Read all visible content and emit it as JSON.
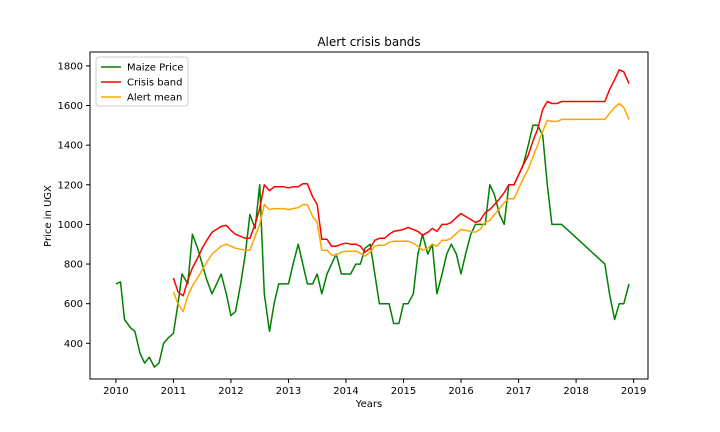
{
  "chart_data": {
    "type": "line",
    "title": "Alert crisis bands",
    "xlabel": "Years",
    "ylabel": "Price in UGX",
    "xlim": [
      2009.55,
      2019.25
    ],
    "ylim": [
      220,
      1870
    ],
    "x_ticks": [
      2010,
      2011,
      2012,
      2013,
      2014,
      2015,
      2016,
      2017,
      2018,
      2019
    ],
    "x_tick_labels": [
      "2010",
      "2011",
      "2012",
      "2013",
      "2014",
      "2015",
      "2016",
      "2017",
      "2018",
      "2019"
    ],
    "y_ticks": [
      400,
      600,
      800,
      1000,
      1200,
      1400,
      1600,
      1800
    ],
    "y_tick_labels": [
      "400",
      "600",
      "800",
      "1000",
      "1200",
      "1400",
      "1600",
      "1800"
    ],
    "grid": false,
    "legend_position": "top-left",
    "series": [
      {
        "name": "Maize Price",
        "color": "#008000",
        "points": [
          [
            2010.0,
            700
          ],
          [
            2010.08,
            710
          ],
          [
            2010.15,
            520
          ],
          [
            2010.25,
            480
          ],
          [
            2010.33,
            460
          ],
          [
            2010.42,
            350
          ],
          [
            2010.5,
            300
          ],
          [
            2010.58,
            330
          ],
          [
            2010.67,
            280
          ],
          [
            2010.75,
            300
          ],
          [
            2010.83,
            400
          ],
          [
            2010.92,
            430
          ],
          [
            2011.0,
            450
          ],
          [
            2011.08,
            600
          ],
          [
            2011.15,
            750
          ],
          [
            2011.25,
            700
          ],
          [
            2011.33,
            950
          ],
          [
            2011.42,
            880
          ],
          [
            2011.5,
            800
          ],
          [
            2011.58,
            720
          ],
          [
            2011.67,
            650
          ],
          [
            2011.75,
            700
          ],
          [
            2011.83,
            750
          ],
          [
            2011.92,
            650
          ],
          [
            2012.0,
            540
          ],
          [
            2012.08,
            560
          ],
          [
            2012.17,
            700
          ],
          [
            2012.25,
            850
          ],
          [
            2012.33,
            1050
          ],
          [
            2012.42,
            980
          ],
          [
            2012.5,
            1200
          ],
          [
            2012.58,
            650
          ],
          [
            2012.67,
            460
          ],
          [
            2012.75,
            600
          ],
          [
            2012.83,
            700
          ],
          [
            2012.92,
            700
          ],
          [
            2013.0,
            700
          ],
          [
            2013.08,
            800
          ],
          [
            2013.17,
            900
          ],
          [
            2013.25,
            800
          ],
          [
            2013.33,
            700
          ],
          [
            2013.42,
            700
          ],
          [
            2013.5,
            750
          ],
          [
            2013.58,
            650
          ],
          [
            2013.67,
            750
          ],
          [
            2013.75,
            800
          ],
          [
            2013.83,
            850
          ],
          [
            2013.92,
            750
          ],
          [
            2014.0,
            750
          ],
          [
            2014.08,
            750
          ],
          [
            2014.17,
            800
          ],
          [
            2014.25,
            800
          ],
          [
            2014.33,
            880
          ],
          [
            2014.42,
            900
          ],
          [
            2014.5,
            750
          ],
          [
            2014.58,
            600
          ],
          [
            2014.67,
            600
          ],
          [
            2014.75,
            600
          ],
          [
            2014.83,
            500
          ],
          [
            2014.92,
            500
          ],
          [
            2015.0,
            600
          ],
          [
            2015.08,
            600
          ],
          [
            2015.17,
            650
          ],
          [
            2015.25,
            850
          ],
          [
            2015.33,
            950
          ],
          [
            2015.42,
            850
          ],
          [
            2015.5,
            900
          ],
          [
            2015.58,
            650
          ],
          [
            2015.67,
            750
          ],
          [
            2015.75,
            850
          ],
          [
            2015.83,
            900
          ],
          [
            2015.92,
            850
          ],
          [
            2016.0,
            750
          ],
          [
            2016.08,
            850
          ],
          [
            2016.17,
            950
          ],
          [
            2016.25,
            1000
          ],
          [
            2016.33,
            1000
          ],
          [
            2016.42,
            1000
          ],
          [
            2016.5,
            1200
          ],
          [
            2016.58,
            1150
          ],
          [
            2016.67,
            1050
          ],
          [
            2016.75,
            1000
          ],
          [
            2016.83,
            1200
          ],
          [
            2016.92,
            1200
          ],
          [
            2017.0,
            1250
          ],
          [
            2017.08,
            1300
          ],
          [
            2017.17,
            1400
          ],
          [
            2017.25,
            1500
          ],
          [
            2017.33,
            1500
          ],
          [
            2017.42,
            1450
          ],
          [
            2017.5,
            1200
          ],
          [
            2017.58,
            1000
          ],
          [
            2017.67,
            1000
          ],
          [
            2017.75,
            1000
          ],
          [
            2018.5,
            800
          ],
          [
            2018.58,
            650
          ],
          [
            2018.67,
            520
          ],
          [
            2018.75,
            600
          ],
          [
            2018.83,
            600
          ],
          [
            2018.92,
            700
          ]
        ]
      },
      {
        "name": "Crisis band",
        "color": "#ff0000",
        "points": [
          [
            2011.0,
            730
          ],
          [
            2011.08,
            660
          ],
          [
            2011.17,
            640
          ],
          [
            2011.25,
            720
          ],
          [
            2011.33,
            780
          ],
          [
            2011.42,
            830
          ],
          [
            2011.5,
            880
          ],
          [
            2011.58,
            920
          ],
          [
            2011.67,
            960
          ],
          [
            2011.75,
            975
          ],
          [
            2011.83,
            990
          ],
          [
            2011.92,
            995
          ],
          [
            2012.0,
            970
          ],
          [
            2012.08,
            950
          ],
          [
            2012.17,
            940
          ],
          [
            2012.25,
            930
          ],
          [
            2012.33,
            930
          ],
          [
            2012.42,
            1000
          ],
          [
            2012.5,
            1080
          ],
          [
            2012.58,
            1200
          ],
          [
            2012.67,
            1170
          ],
          [
            2012.75,
            1190
          ],
          [
            2012.83,
            1190
          ],
          [
            2012.92,
            1190
          ],
          [
            2013.0,
            1185
          ],
          [
            2013.08,
            1190
          ],
          [
            2013.17,
            1190
          ],
          [
            2013.25,
            1205
          ],
          [
            2013.33,
            1205
          ],
          [
            2013.42,
            1140
          ],
          [
            2013.5,
            1100
          ],
          [
            2013.58,
            925
          ],
          [
            2013.67,
            925
          ],
          [
            2013.75,
            890
          ],
          [
            2013.83,
            890
          ],
          [
            2013.92,
            900
          ],
          [
            2014.0,
            905
          ],
          [
            2014.08,
            900
          ],
          [
            2014.17,
            900
          ],
          [
            2014.25,
            890
          ],
          [
            2014.33,
            860
          ],
          [
            2014.42,
            880
          ],
          [
            2014.5,
            920
          ],
          [
            2014.58,
            930
          ],
          [
            2014.67,
            930
          ],
          [
            2014.75,
            950
          ],
          [
            2014.83,
            965
          ],
          [
            2014.92,
            970
          ],
          [
            2015.0,
            975
          ],
          [
            2015.08,
            985
          ],
          [
            2015.17,
            975
          ],
          [
            2015.25,
            965
          ],
          [
            2015.33,
            945
          ],
          [
            2015.42,
            960
          ],
          [
            2015.5,
            980
          ],
          [
            2015.58,
            965
          ],
          [
            2015.67,
            1000
          ],
          [
            2015.75,
            1000
          ],
          [
            2015.83,
            1010
          ],
          [
            2015.92,
            1035
          ],
          [
            2016.0,
            1055
          ],
          [
            2016.08,
            1040
          ],
          [
            2016.17,
            1025
          ],
          [
            2016.25,
            1010
          ],
          [
            2016.33,
            1020
          ],
          [
            2016.42,
            1060
          ],
          [
            2016.5,
            1075
          ],
          [
            2016.58,
            1100
          ],
          [
            2016.67,
            1130
          ],
          [
            2016.75,
            1160
          ],
          [
            2016.83,
            1200
          ],
          [
            2016.92,
            1200
          ],
          [
            2017.0,
            1250
          ],
          [
            2017.08,
            1300
          ],
          [
            2017.17,
            1350
          ],
          [
            2017.25,
            1420
          ],
          [
            2017.33,
            1480
          ],
          [
            2017.42,
            1580
          ],
          [
            2017.5,
            1620
          ],
          [
            2017.58,
            1610
          ],
          [
            2017.67,
            1610
          ],
          [
            2017.75,
            1620
          ],
          [
            2017.83,
            1620
          ],
          [
            2018.42,
            1620
          ],
          [
            2018.5,
            1620
          ],
          [
            2018.58,
            1680
          ],
          [
            2018.67,
            1730
          ],
          [
            2018.75,
            1780
          ],
          [
            2018.83,
            1770
          ],
          [
            2018.92,
            1710
          ]
        ]
      },
      {
        "name": "Alert mean",
        "color": "#ffa500",
        "points": [
          [
            2011.0,
            660
          ],
          [
            2011.08,
            600
          ],
          [
            2011.17,
            560
          ],
          [
            2011.25,
            640
          ],
          [
            2011.33,
            690
          ],
          [
            2011.42,
            730
          ],
          [
            2011.5,
            770
          ],
          [
            2011.58,
            810
          ],
          [
            2011.67,
            850
          ],
          [
            2011.75,
            870
          ],
          [
            2011.83,
            890
          ],
          [
            2011.92,
            900
          ],
          [
            2012.0,
            890
          ],
          [
            2012.08,
            880
          ],
          [
            2012.17,
            875
          ],
          [
            2012.25,
            870
          ],
          [
            2012.33,
            870
          ],
          [
            2012.42,
            940
          ],
          [
            2012.5,
            1000
          ],
          [
            2012.58,
            1100
          ],
          [
            2012.67,
            1075
          ],
          [
            2012.75,
            1080
          ],
          [
            2012.83,
            1080
          ],
          [
            2012.92,
            1080
          ],
          [
            2013.0,
            1075
          ],
          [
            2013.08,
            1080
          ],
          [
            2013.17,
            1085
          ],
          [
            2013.25,
            1100
          ],
          [
            2013.33,
            1100
          ],
          [
            2013.42,
            1040
          ],
          [
            2013.5,
            1010
          ],
          [
            2013.58,
            870
          ],
          [
            2013.67,
            870
          ],
          [
            2013.75,
            845
          ],
          [
            2013.83,
            845
          ],
          [
            2013.92,
            860
          ],
          [
            2014.0,
            865
          ],
          [
            2014.08,
            865
          ],
          [
            2014.17,
            865
          ],
          [
            2014.25,
            855
          ],
          [
            2014.33,
            840
          ],
          [
            2014.42,
            860
          ],
          [
            2014.5,
            890
          ],
          [
            2014.58,
            895
          ],
          [
            2014.67,
            895
          ],
          [
            2014.75,
            910
          ],
          [
            2014.83,
            915
          ],
          [
            2014.92,
            915
          ],
          [
            2015.0,
            915
          ],
          [
            2015.08,
            915
          ],
          [
            2015.17,
            905
          ],
          [
            2015.25,
            890
          ],
          [
            2015.33,
            870
          ],
          [
            2015.42,
            880
          ],
          [
            2015.5,
            900
          ],
          [
            2015.58,
            890
          ],
          [
            2015.67,
            920
          ],
          [
            2015.75,
            920
          ],
          [
            2015.83,
            930
          ],
          [
            2015.92,
            955
          ],
          [
            2016.0,
            975
          ],
          [
            2016.08,
            970
          ],
          [
            2016.17,
            965
          ],
          [
            2016.25,
            960
          ],
          [
            2016.33,
            975
          ],
          [
            2016.42,
            1010
          ],
          [
            2016.5,
            1020
          ],
          [
            2016.58,
            1050
          ],
          [
            2016.67,
            1080
          ],
          [
            2016.75,
            1110
          ],
          [
            2016.83,
            1130
          ],
          [
            2016.92,
            1130
          ],
          [
            2017.0,
            1180
          ],
          [
            2017.08,
            1230
          ],
          [
            2017.17,
            1280
          ],
          [
            2017.25,
            1340
          ],
          [
            2017.33,
            1400
          ],
          [
            2017.42,
            1470
          ],
          [
            2017.5,
            1525
          ],
          [
            2017.58,
            1520
          ],
          [
            2017.67,
            1520
          ],
          [
            2017.75,
            1530
          ],
          [
            2017.83,
            1530
          ],
          [
            2018.42,
            1530
          ],
          [
            2018.5,
            1530
          ],
          [
            2018.58,
            1560
          ],
          [
            2018.67,
            1590
          ],
          [
            2018.75,
            1610
          ],
          [
            2018.83,
            1590
          ],
          [
            2018.92,
            1530
          ]
        ]
      }
    ]
  }
}
